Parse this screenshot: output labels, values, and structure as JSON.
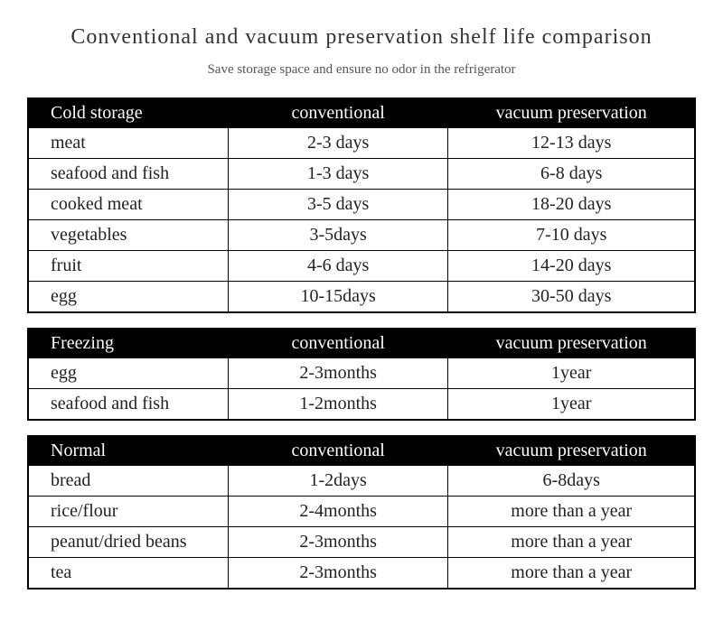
{
  "title": "Conventional and vacuum preservation shelf life comparison",
  "subtitle": "Save storage space and ensure no odor in the refrigerator",
  "colors": {
    "header_bg": "#000000",
    "header_fg": "#ffffff",
    "border": "#000000",
    "page_bg": "#ffffff",
    "title_color": "#333333",
    "subtitle_color": "#555555",
    "cell_text": "#222222"
  },
  "typography": {
    "title_fontsize": 24,
    "subtitle_fontsize": 15,
    "header_fontsize": 20,
    "cell_fontsize": 20,
    "font_family": "Times New Roman"
  },
  "column_widths_pct": [
    30,
    33,
    37
  ],
  "tables": [
    {
      "headers": [
        "Cold storage",
        "conventional",
        "vacuum preservation"
      ],
      "rows": [
        [
          "meat",
          "2-3 days",
          "12-13 days"
        ],
        [
          "seafood and fish",
          "1-3 days",
          "6-8 days"
        ],
        [
          "cooked meat",
          "3-5 days",
          "18-20 days"
        ],
        [
          "vegetables",
          "3-5days",
          "7-10 days"
        ],
        [
          "fruit",
          "4-6 days",
          "14-20 days"
        ],
        [
          "egg",
          "10-15days",
          "30-50 days"
        ]
      ]
    },
    {
      "headers": [
        "Freezing",
        "conventional",
        "vacuum preservation"
      ],
      "rows": [
        [
          "egg",
          "2-3months",
          "1year"
        ],
        [
          "seafood and fish",
          "1-2months",
          "1year"
        ]
      ]
    },
    {
      "headers": [
        "Normal",
        "conventional",
        "vacuum preservation"
      ],
      "rows": [
        [
          "bread",
          "1-2days",
          "6-8days"
        ],
        [
          "rice/flour",
          "2-4months",
          "more than a year"
        ],
        [
          "peanut/dried beans",
          "2-3months",
          "more than a year"
        ],
        [
          "tea",
          "2-3months",
          "more than a year"
        ]
      ]
    }
  ]
}
